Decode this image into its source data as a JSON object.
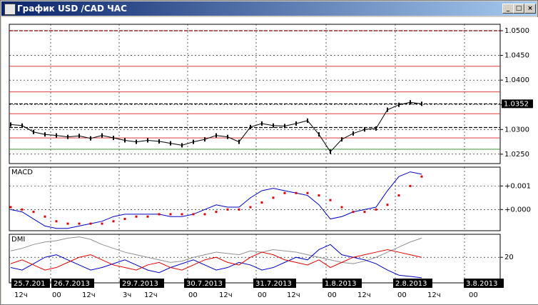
{
  "window": {
    "title": "График USD /CAD ЧАС"
  },
  "chart_data": [
    {
      "type": "line",
      "ylim": [
        1.0231,
        1.0513
      ],
      "yticks": [
        {
          "value": 1.025,
          "label": "1.0250"
        },
        {
          "value": 1.03,
          "label": "1.0300"
        },
        {
          "value": 1.035,
          "label": "1.0350"
        },
        {
          "value": 1.04,
          "label": "1.0400"
        },
        {
          "value": 1.045,
          "label": "1.0450"
        },
        {
          "value": 1.05,
          "label": "1.0500"
        }
      ],
      "levels": [
        {
          "value": 1.05,
          "color": "#800000",
          "dashed": true
        },
        {
          "value": 1.0428,
          "color": "#d02020",
          "dashed": false
        },
        {
          "value": 1.0376,
          "color": "#d02020",
          "dashed": false
        },
        {
          "value": 1.0352,
          "color": "#000000",
          "dashed": true
        },
        {
          "value": 1.0332,
          "color": "#d02020",
          "dashed": false
        },
        {
          "value": 1.0304,
          "color": "#000000",
          "dashed": true
        },
        {
          "value": 1.0283,
          "color": "#d02020",
          "dashed": false
        },
        {
          "value": 1.026,
          "color": "#208020",
          "dashed": false
        }
      ],
      "last_price": 1.0352,
      "series": [
        {
          "color": "#000000",
          "values": [
            1.031,
            1.0308,
            1.0295,
            1.029,
            1.0288,
            1.0285,
            1.0287,
            1.0282,
            1.0288,
            1.0283,
            1.0278,
            1.0275,
            1.0278,
            1.0276,
            1.0272,
            1.0268,
            1.0275,
            1.028,
            1.0288,
            1.0285,
            1.0275,
            1.0305,
            1.0312,
            1.0308,
            1.0307,
            1.0312,
            1.0318,
            1.029,
            1.0255,
            1.028,
            1.0292,
            1.03,
            1.0302,
            1.034,
            1.035,
            1.0355,
            1.0352
          ]
        }
      ]
    },
    {
      "type": "line",
      "title": "MACD",
      "ylim": [
        -0.0009,
        0.0018
      ],
      "yticks": [
        {
          "value": 0.001,
          "label": "+0.001"
        },
        {
          "value": 0,
          "label": "+0.000"
        }
      ],
      "series": [
        {
          "color": "#0000c0",
          "style": "line",
          "values": [
            0.0,
            -0.0001,
            -0.0004,
            -0.0007,
            -0.0008,
            -0.0008,
            -0.0007,
            -0.0006,
            -0.0005,
            -0.0003,
            -0.0002,
            -0.0002,
            -0.0002,
            -0.0002,
            -0.0003,
            -0.0003,
            -0.0002,
            0.0,
            0.0002,
            0.0001,
            0.0001,
            0.0005,
            0.0008,
            0.0009,
            0.0008,
            0.0007,
            0.0006,
            0.0002,
            -0.0004,
            -0.0003,
            -0.0001,
            0.0,
            0.0001,
            0.0008,
            0.0014,
            0.0016,
            0.0015
          ]
        },
        {
          "color": "#e00000",
          "style": "dots",
          "values": [
            0.0001,
            0.0,
            -0.0001,
            -0.0003,
            -0.0005,
            -0.0006,
            -0.0006,
            -0.0006,
            -0.0006,
            -0.0005,
            -0.0004,
            -0.0003,
            -0.0003,
            -0.0002,
            -0.0002,
            -0.0002,
            -0.0002,
            -0.0002,
            -0.0001,
            0.0,
            0.0,
            0.0001,
            0.0003,
            0.0005,
            0.0007,
            0.0007,
            0.0007,
            0.0006,
            0.0004,
            0.0001,
            -0.0001,
            -0.0001,
            0.0,
            0.0002,
            0.0006,
            0.001,
            0.0014
          ]
        }
      ]
    },
    {
      "type": "line",
      "title": "DMI",
      "ylim": [
        0,
        38
      ],
      "yticks": [
        20
      ],
      "series": [
        {
          "color": "#909090",
          "style": "line",
          "values": [
            25,
            27,
            30,
            32,
            33,
            35,
            36,
            34,
            30,
            27,
            24,
            22,
            20,
            18,
            16,
            17,
            20,
            22,
            24,
            23,
            22,
            25,
            24,
            26,
            25,
            24,
            22,
            20,
            18,
            16,
            15,
            17,
            20,
            24,
            28,
            32,
            35
          ]
        },
        {
          "color": "#0000c0",
          "style": "line",
          "values": [
            12,
            10,
            15,
            20,
            22,
            18,
            14,
            10,
            12,
            15,
            18,
            14,
            10,
            8,
            12,
            15,
            18,
            14,
            10,
            12,
            16,
            14,
            10,
            12,
            16,
            20,
            18,
            26,
            30,
            22,
            20,
            18,
            15,
            10,
            6,
            5,
            4
          ]
        },
        {
          "color": "#e00000",
          "style": "line",
          "values": [
            15,
            18,
            14,
            10,
            12,
            16,
            20,
            22,
            18,
            14,
            12,
            10,
            14,
            16,
            12,
            10,
            14,
            18,
            20,
            16,
            14,
            20,
            24,
            22,
            18,
            16,
            14,
            18,
            12,
            16,
            20,
            22,
            24,
            26,
            24,
            22,
            20
          ]
        }
      ]
    }
  ],
  "x_axis": {
    "dates": [
      "25.7.201",
      "26.7.2013",
      "29.7.2013",
      "30.7.2013",
      "31.7.2013",
      "1.8.2013",
      "2.8.2013",
      "3.8.2013"
    ],
    "times": [
      "12ч",
      "00",
      "12ч",
      "3ч",
      "12ч",
      "00",
      "12ч",
      "00",
      "12ч",
      "00",
      "12ч",
      "00",
      "12ч",
      "00"
    ]
  }
}
